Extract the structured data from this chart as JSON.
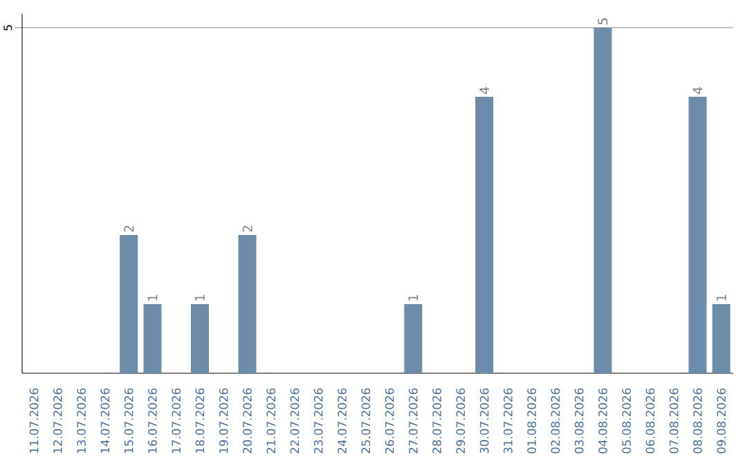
{
  "chart_data": {
    "type": "bar",
    "categories": [
      "11.07.2026",
      "12.07.2026",
      "13.07.2026",
      "14.07.2026",
      "15.07.2026",
      "16.07.2026",
      "17.07.2026",
      "18.07.2026",
      "19.07.2026",
      "20.07.2026",
      "21.07.2026",
      "22.07.2026",
      "23.07.2026",
      "24.07.2026",
      "25.07.2026",
      "26.07.2026",
      "27.07.2026",
      "28.07.2026",
      "29.07.2026",
      "30.07.2026",
      "31.07.2026",
      "01.08.2026",
      "02.08.2026",
      "03.08.2026",
      "04.08.2026",
      "05.08.2026",
      "06.08.2026",
      "07.08.2026",
      "08.08.2026",
      "09.08.2026"
    ],
    "values": [
      null,
      null,
      null,
      null,
      2,
      1,
      null,
      1,
      null,
      2,
      null,
      null,
      null,
      null,
      null,
      null,
      1,
      null,
      null,
      4,
      null,
      null,
      null,
      null,
      5,
      null,
      null,
      null,
      4,
      1
    ],
    "color": "#6d8caa",
    "ylim": [
      0,
      5.2
    ],
    "yticks": [
      5
    ],
    "grid": "y",
    "data_labels": true
  }
}
